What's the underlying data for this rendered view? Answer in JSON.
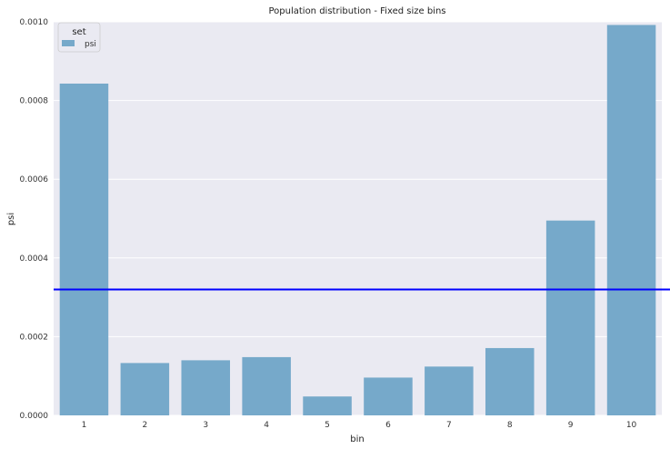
{
  "chart_data": {
    "type": "bar",
    "title": "Population distribution - Fixed size bins",
    "xlabel": "bin",
    "ylabel": "psi",
    "categories": [
      "1",
      "2",
      "3",
      "4",
      "5",
      "6",
      "7",
      "8",
      "9",
      "10"
    ],
    "series": [
      {
        "name": "psi",
        "color": "#76a9ca",
        "values": [
          0.000843,
          0.000133,
          0.00014,
          0.000148,
          4.8e-05,
          9.6e-05,
          0.000124,
          0.000171,
          0.000495,
          0.000992
        ]
      }
    ],
    "ylim": [
      0,
      0.001
    ],
    "yticks": [
      "0.0000",
      "0.0002",
      "0.0004",
      "0.0006",
      "0.0008",
      "0.0010"
    ],
    "ytick_values": [
      0,
      0.0002,
      0.0004,
      0.0006,
      0.0008,
      0.001
    ],
    "reference_line": {
      "value": 0.00032,
      "color": "#0000ff"
    },
    "legend": {
      "title": "set",
      "placement": "top-left"
    },
    "grid": true,
    "background": "#eaeaf2"
  }
}
